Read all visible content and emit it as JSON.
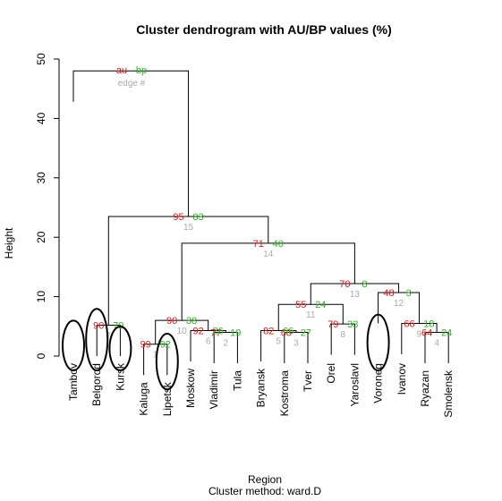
{
  "chart_data": {
    "type": "dendrogram",
    "title": "Cluster dendrogram with AU/BP values (%)",
    "xlabel": "Region",
    "sublabel": "Cluster method: ward.D",
    "ylabel": "Height",
    "ylim": [
      0,
      50
    ],
    "yticks": [
      0,
      10,
      20,
      30,
      40,
      50
    ],
    "legend": {
      "au": "au",
      "bp": "bp",
      "edge": "edge #"
    },
    "leaves": [
      "Tambov",
      "Belgorod",
      "Kursk",
      "Kaluga",
      "Lipetsk",
      "Moskow",
      "Vladimir",
      "Tula",
      "Bryansk",
      "Kostroma",
      "Tver",
      "Orel",
      "Yaroslavl",
      "Voroneg",
      "Ivanov",
      "Ryazan",
      "Smolensk"
    ],
    "circled_leaves": [
      "Tambov",
      "Belgorod",
      "Kursk",
      "Lipetsk",
      "Voroneg"
    ],
    "merges": [
      {
        "id": 1,
        "left": "Kaluga",
        "right": "Lipetsk",
        "height": 2.0,
        "au": 99,
        "bp": 92
      },
      {
        "id": 2,
        "left": "Vladimir",
        "right": "Tula",
        "height": 4.0,
        "au": 77,
        "bp": 19
      },
      {
        "id": 3,
        "left": "Kostroma",
        "right": "Tver",
        "height": 4.0,
        "au": 60,
        "bp": 27
      },
      {
        "id": 4,
        "left": "Ryazan",
        "right": "Smolensk",
        "height": 4.0,
        "au": 64,
        "bp": 24
      },
      {
        "id": 5,
        "left": "Bryansk",
        "right": 3,
        "height": 4.3,
        "au": 82,
        "bp": 66
      },
      {
        "id": 6,
        "left": "Moskow",
        "right": 2,
        "height": 4.3,
        "au": 92,
        "bp": 26
      },
      {
        "id": 7,
        "left": "Belgorod",
        "right": "Kursk",
        "height": 5.2,
        "au": 90,
        "bp": 79
      },
      {
        "id": 8,
        "left": "Orel",
        "right": "Yaroslavl",
        "height": 5.4,
        "au": 79,
        "bp": 33
      },
      {
        "id": 9,
        "left": "Ivanov",
        "right": 4,
        "height": 5.5,
        "au": 66,
        "bp": 18
      },
      {
        "id": 10,
        "left": 1,
        "right": 6,
        "height": 6.0,
        "au": 90,
        "bp": 38
      },
      {
        "id": 11,
        "left": 5,
        "right": 8,
        "height": 8.7,
        "au": 55,
        "bp": 24
      },
      {
        "id": 12,
        "left": "Voroneg",
        "right": 9,
        "height": 10.7,
        "au": 48,
        "bp": 3
      },
      {
        "id": 13,
        "left": 11,
        "right": 12,
        "height": 12.2,
        "au": 70,
        "bp": 8
      },
      {
        "id": 14,
        "left": 10,
        "right": 13,
        "height": 19.0,
        "au": 71,
        "bp": 40
      },
      {
        "id": 15,
        "left": 7,
        "right": 14,
        "height": 23.5,
        "au": 95,
        "bp": 83
      },
      {
        "id": 16,
        "left": "Tambov",
        "right": 15,
        "height": 48.0,
        "au": null,
        "bp": null
      }
    ],
    "colors": {
      "au": "#e0161b",
      "bp": "#2fb52a",
      "edge": "#a9a9a9",
      "branch": "#000000",
      "lowleaf": "#b3b3b3"
    }
  }
}
